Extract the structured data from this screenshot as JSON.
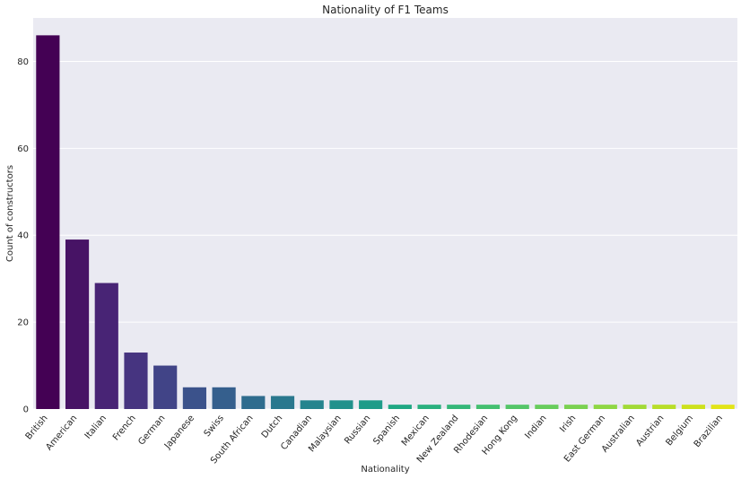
{
  "chart_data": {
    "type": "bar",
    "title": "Nationality of F1 Teams",
    "xlabel": "Nationality",
    "ylabel": "Count of constructors",
    "categories": [
      "British",
      "American",
      "Italian",
      "French",
      "German",
      "Japanese",
      "Swiss",
      "South African",
      "Dutch",
      "Canadian",
      "Malaysian",
      "Russian",
      "Spanish",
      "Mexican",
      "New Zealand",
      "Rhodesian",
      "Hong Kong",
      "Indian",
      "Irish",
      "East German",
      "Australian",
      "Austrian",
      "Belgium",
      "Brazilian"
    ],
    "values": [
      86,
      39,
      29,
      13,
      10,
      5,
      5,
      3,
      3,
      2,
      2,
      2,
      1,
      1,
      1,
      1,
      1,
      1,
      1,
      1,
      1,
      1,
      1,
      1
    ],
    "ylim": [
      0,
      90
    ],
    "yticks": [
      0,
      20,
      40,
      60,
      80
    ],
    "grid": true,
    "legend": "none",
    "palette": "viridis",
    "colors": [
      "#440154",
      "#471365",
      "#482475",
      "#463480",
      "#414487",
      "#3b528b",
      "#355f8d",
      "#2f6c8e",
      "#2a788e",
      "#25848e",
      "#21918c",
      "#1e9c89",
      "#20a884",
      "#2ab07f",
      "#35b779",
      "#44bf70",
      "#54c568",
      "#67cc5c",
      "#7ad151",
      "#8fd744",
      "#a2da37",
      "#b8de29",
      "#cde11d",
      "#e2e418"
    ],
    "background": "#eaeaf2",
    "gridline_color": "#ffffff"
  }
}
